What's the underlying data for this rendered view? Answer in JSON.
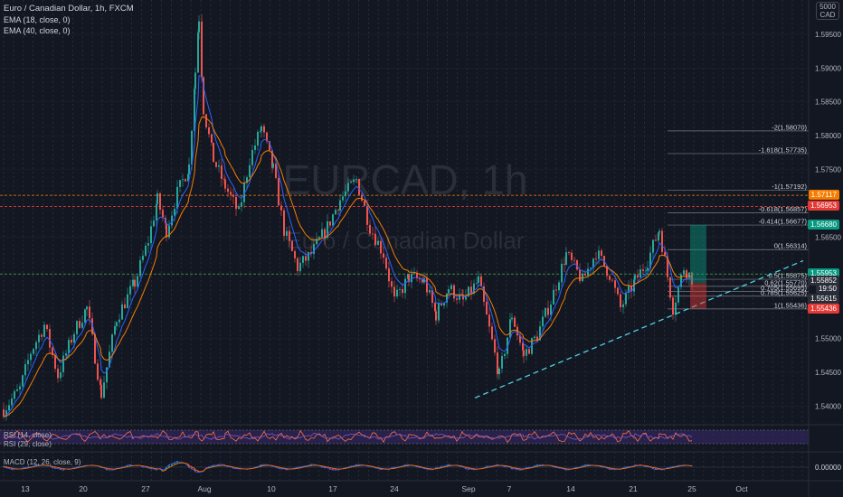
{
  "header": {
    "symbol_title": "Euro / Canadian Dollar, 1h, FXCM",
    "ema1": "EMA (18, close, 0)",
    "ema2": "EMA (40, close, 0)",
    "corner_top": "5000",
    "corner_currency": "CAD"
  },
  "watermark": {
    "ticker": "EURCAD, 1h",
    "name": "Euro / Canadian Dollar"
  },
  "yaxis_ticks": [
    "1.59500",
    "1.59000",
    "1.58500",
    "1.58000",
    "1.57500",
    "1.56500",
    "1.55000",
    "1.54500",
    "1.54000"
  ],
  "fib_levels": [
    {
      "label": "-2(1.58070)",
      "price": 1.5807
    },
    {
      "label": "-1.618(1.57735)",
      "price": 1.57735
    },
    {
      "label": "-1(1.57192)",
      "price": 1.57192
    },
    {
      "label": "-0.618(1.56857)",
      "price": 1.56857
    },
    {
      "label": "-0.414(1.56677)",
      "price": 1.56677
    },
    {
      "label": "0(1.56314)",
      "price": 1.56314
    },
    {
      "label": "0.5(1.55875)",
      "price": 1.55875
    },
    {
      "label": "0.62(1.55770)",
      "price": 1.5577
    },
    {
      "label": "0.705(1.55695)",
      "price": 1.55695
    },
    {
      "label": "0.785(1.55625)",
      "price": 1.55625
    },
    {
      "label": "1(1.55436)",
      "price": 1.55436
    }
  ],
  "price_labels": [
    {
      "text": "1.57117",
      "price": 1.57117,
      "color": "#f57c00"
    },
    {
      "text": "1.56953",
      "price": 1.56953,
      "color": "#e53935"
    },
    {
      "text": "1.56680",
      "price": 1.5668,
      "color": "#089981"
    },
    {
      "text": "1.55953",
      "price": 1.55953,
      "color": "#089981"
    },
    {
      "text": "1.55852",
      "price": 1.55852,
      "color": "#2a2e39"
    },
    {
      "text": "19:50",
      "price": 1.55735,
      "color": "#2a2e39"
    },
    {
      "text": "1.55615",
      "price": 1.55575,
      "color": "#2a2e39"
    },
    {
      "text": "1.55436",
      "price": 1.5543,
      "color": "#e53935"
    }
  ],
  "rsi_legend": "RSI (14, close)",
  "rsi_legend2": "RSI (29, close)",
  "macd_legend": "MACD (12, 26, close, 9)",
  "macd_value": "0.00000",
  "xaxis_labels": [
    "13",
    "20",
    "27",
    "Aug",
    "10",
    "17",
    "24",
    "Sep",
    "7",
    "14",
    "21",
    "25",
    "Oct"
  ],
  "chart_data": {
    "type": "candlestick",
    "ylim": [
      1.5375,
      1.599
    ],
    "key_points": [
      {
        "x": 0,
        "y": 1.5395
      },
      {
        "x": 18,
        "y": 1.5425
      },
      {
        "x": 30,
        "y": 1.548
      },
      {
        "x": 45,
        "y": 1.552
      },
      {
        "x": 60,
        "y": 1.5445
      },
      {
        "x": 78,
        "y": 1.551
      },
      {
        "x": 92,
        "y": 1.5545
      },
      {
        "x": 108,
        "y": 1.5418
      },
      {
        "x": 125,
        "y": 1.553
      },
      {
        "x": 145,
        "y": 1.5582
      },
      {
        "x": 160,
        "y": 1.5645
      },
      {
        "x": 170,
        "y": 1.5705
      },
      {
        "x": 180,
        "y": 1.566
      },
      {
        "x": 192,
        "y": 1.5715
      },
      {
        "x": 205,
        "y": 1.5755
      },
      {
        "x": 212,
        "y": 1.5895
      },
      {
        "x": 216,
        "y": 1.5975
      },
      {
        "x": 221,
        "y": 1.584
      },
      {
        "x": 232,
        "y": 1.5765
      },
      {
        "x": 245,
        "y": 1.5725
      },
      {
        "x": 260,
        "y": 1.5685
      },
      {
        "x": 272,
        "y": 1.5765
      },
      {
        "x": 285,
        "y": 1.5812
      },
      {
        "x": 298,
        "y": 1.575
      },
      {
        "x": 310,
        "y": 1.566
      },
      {
        "x": 325,
        "y": 1.5605
      },
      {
        "x": 340,
        "y": 1.5625
      },
      {
        "x": 358,
        "y": 1.5665
      },
      {
        "x": 372,
        "y": 1.5705
      },
      {
        "x": 390,
        "y": 1.5735
      },
      {
        "x": 405,
        "y": 1.5665
      },
      {
        "x": 420,
        "y": 1.5625
      },
      {
        "x": 432,
        "y": 1.5555
      },
      {
        "x": 448,
        "y": 1.559
      },
      {
        "x": 465,
        "y": 1.5585
      },
      {
        "x": 478,
        "y": 1.5535
      },
      {
        "x": 492,
        "y": 1.5575
      },
      {
        "x": 508,
        "y": 1.5555
      },
      {
        "x": 525,
        "y": 1.5585
      },
      {
        "x": 540,
        "y": 1.5495
      },
      {
        "x": 548,
        "y": 1.5445
      },
      {
        "x": 562,
        "y": 1.5535
      },
      {
        "x": 575,
        "y": 1.5475
      },
      {
        "x": 590,
        "y": 1.5505
      },
      {
        "x": 605,
        "y": 1.5555
      },
      {
        "x": 622,
        "y": 1.5625
      },
      {
        "x": 640,
        "y": 1.5585
      },
      {
        "x": 655,
        "y": 1.5628
      },
      {
        "x": 670,
        "y": 1.5595
      },
      {
        "x": 682,
        "y": 1.5545
      },
      {
        "x": 698,
        "y": 1.5585
      },
      {
        "x": 712,
        "y": 1.5615
      },
      {
        "x": 725,
        "y": 1.5662
      },
      {
        "x": 740,
        "y": 1.5545
      },
      {
        "x": 752,
        "y": 1.5605
      },
      {
        "x": 763,
        "y": 1.5585
      }
    ],
    "ema18_color": "#2962ff",
    "ema40_color": "#f57c00",
    "bull_color": "#26a69a",
    "bear_color": "#ef5350",
    "trendline": {
      "x1": 525,
      "y1": 1.5412,
      "x2": 888,
      "y2": 1.5615
    },
    "position_box": {
      "x1": 763,
      "x2": 781,
      "entry": 1.5582,
      "target": 1.5668,
      "stop": 1.5544
    }
  }
}
